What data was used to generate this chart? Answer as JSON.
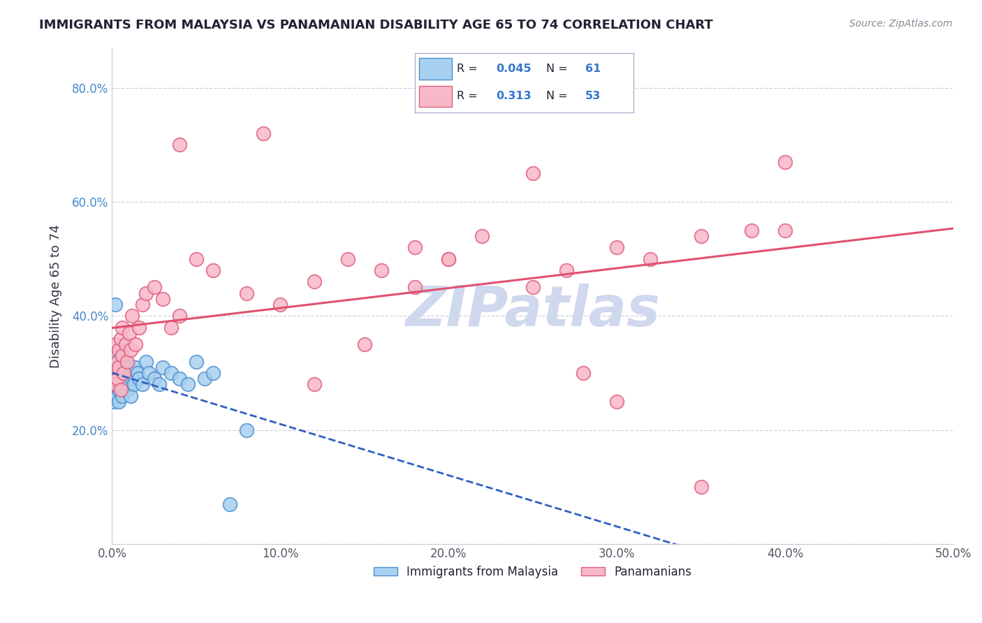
{
  "title": "IMMIGRANTS FROM MALAYSIA VS PANAMANIAN DISABILITY AGE 65 TO 74 CORRELATION CHART",
  "source": "Source: ZipAtlas.com",
  "ylabel": "Disability Age 65 to 74",
  "xlim": [
    0.0,
    0.5
  ],
  "ylim": [
    0.0,
    0.87
  ],
  "x_ticks": [
    0.0,
    0.1,
    0.2,
    0.3,
    0.4,
    0.5
  ],
  "x_tick_labels": [
    "0.0%",
    "10.0%",
    "20.0%",
    "30.0%",
    "40.0%",
    "50.0%"
  ],
  "y_ticks": [
    0.0,
    0.2,
    0.4,
    0.6,
    0.8
  ],
  "y_tick_labels": [
    "",
    "20.0%",
    "40.0%",
    "60.0%",
    "80.0%"
  ],
  "legend_r1": "0.045",
  "legend_n1": "61",
  "legend_r2": "0.313",
  "legend_n2": "53",
  "series1_color": "#a8d0f0",
  "series2_color": "#f8b8c8",
  "series1_edge": "#5090d0",
  "series2_edge": "#e06080",
  "line1_color": "#3060c0",
  "line2_color": "#e05070",
  "background_color": "#ffffff",
  "grid_color": "#d0d0e0",
  "watermark_color": "#d0d8ee",
  "title_color": "#222233",
  "source_color": "#888899",
  "ylabel_color": "#333344",
  "tick_color_x": "#555566",
  "tick_color_y": "#4488cc",
  "legend_text_color": "#222233",
  "legend_val_color": "#3377cc",
  "legend_border_color": "#aaaacc",
  "malaysia_x": [
    0.001,
    0.001,
    0.001,
    0.001,
    0.001,
    0.002,
    0.002,
    0.002,
    0.002,
    0.002,
    0.002,
    0.003,
    0.003,
    0.003,
    0.003,
    0.003,
    0.004,
    0.004,
    0.004,
    0.004,
    0.004,
    0.005,
    0.005,
    0.005,
    0.005,
    0.006,
    0.006,
    0.006,
    0.006,
    0.007,
    0.007,
    0.007,
    0.008,
    0.008,
    0.008,
    0.009,
    0.009,
    0.01,
    0.01,
    0.011,
    0.011,
    0.012,
    0.013,
    0.014,
    0.015,
    0.016,
    0.018,
    0.02,
    0.022,
    0.025,
    0.028,
    0.03,
    0.035,
    0.04,
    0.045,
    0.05,
    0.055,
    0.06,
    0.07,
    0.08,
    0.002
  ],
  "malaysia_y": [
    0.27,
    0.29,
    0.3,
    0.25,
    0.32,
    0.28,
    0.31,
    0.27,
    0.26,
    0.29,
    0.33,
    0.28,
    0.3,
    0.32,
    0.26,
    0.29,
    0.31,
    0.27,
    0.3,
    0.28,
    0.25,
    0.29,
    0.32,
    0.28,
    0.27,
    0.3,
    0.31,
    0.28,
    0.26,
    0.29,
    0.31,
    0.27,
    0.3,
    0.28,
    0.32,
    0.29,
    0.27,
    0.31,
    0.28,
    0.3,
    0.26,
    0.29,
    0.28,
    0.31,
    0.3,
    0.29,
    0.28,
    0.32,
    0.3,
    0.29,
    0.28,
    0.31,
    0.3,
    0.29,
    0.28,
    0.32,
    0.29,
    0.3,
    0.07,
    0.2,
    0.42
  ],
  "panama_x": [
    0.001,
    0.002,
    0.002,
    0.003,
    0.003,
    0.004,
    0.004,
    0.005,
    0.005,
    0.006,
    0.006,
    0.007,
    0.008,
    0.009,
    0.01,
    0.011,
    0.012,
    0.014,
    0.016,
    0.018,
    0.02,
    0.025,
    0.03,
    0.035,
    0.04,
    0.05,
    0.06,
    0.08,
    0.1,
    0.12,
    0.14,
    0.16,
    0.18,
    0.2,
    0.22,
    0.25,
    0.27,
    0.3,
    0.32,
    0.35,
    0.38,
    0.4,
    0.35,
    0.3,
    0.28,
    0.4,
    0.15,
    0.2,
    0.25,
    0.18,
    0.12,
    0.09,
    0.04
  ],
  "panama_y": [
    0.3,
    0.28,
    0.35,
    0.32,
    0.29,
    0.34,
    0.31,
    0.27,
    0.36,
    0.33,
    0.38,
    0.3,
    0.35,
    0.32,
    0.37,
    0.34,
    0.4,
    0.35,
    0.38,
    0.42,
    0.44,
    0.45,
    0.43,
    0.38,
    0.4,
    0.5,
    0.48,
    0.44,
    0.42,
    0.46,
    0.5,
    0.48,
    0.52,
    0.5,
    0.54,
    0.45,
    0.48,
    0.52,
    0.5,
    0.54,
    0.55,
    0.67,
    0.1,
    0.25,
    0.3,
    0.55,
    0.35,
    0.5,
    0.65,
    0.45,
    0.28,
    0.72,
    0.7
  ]
}
